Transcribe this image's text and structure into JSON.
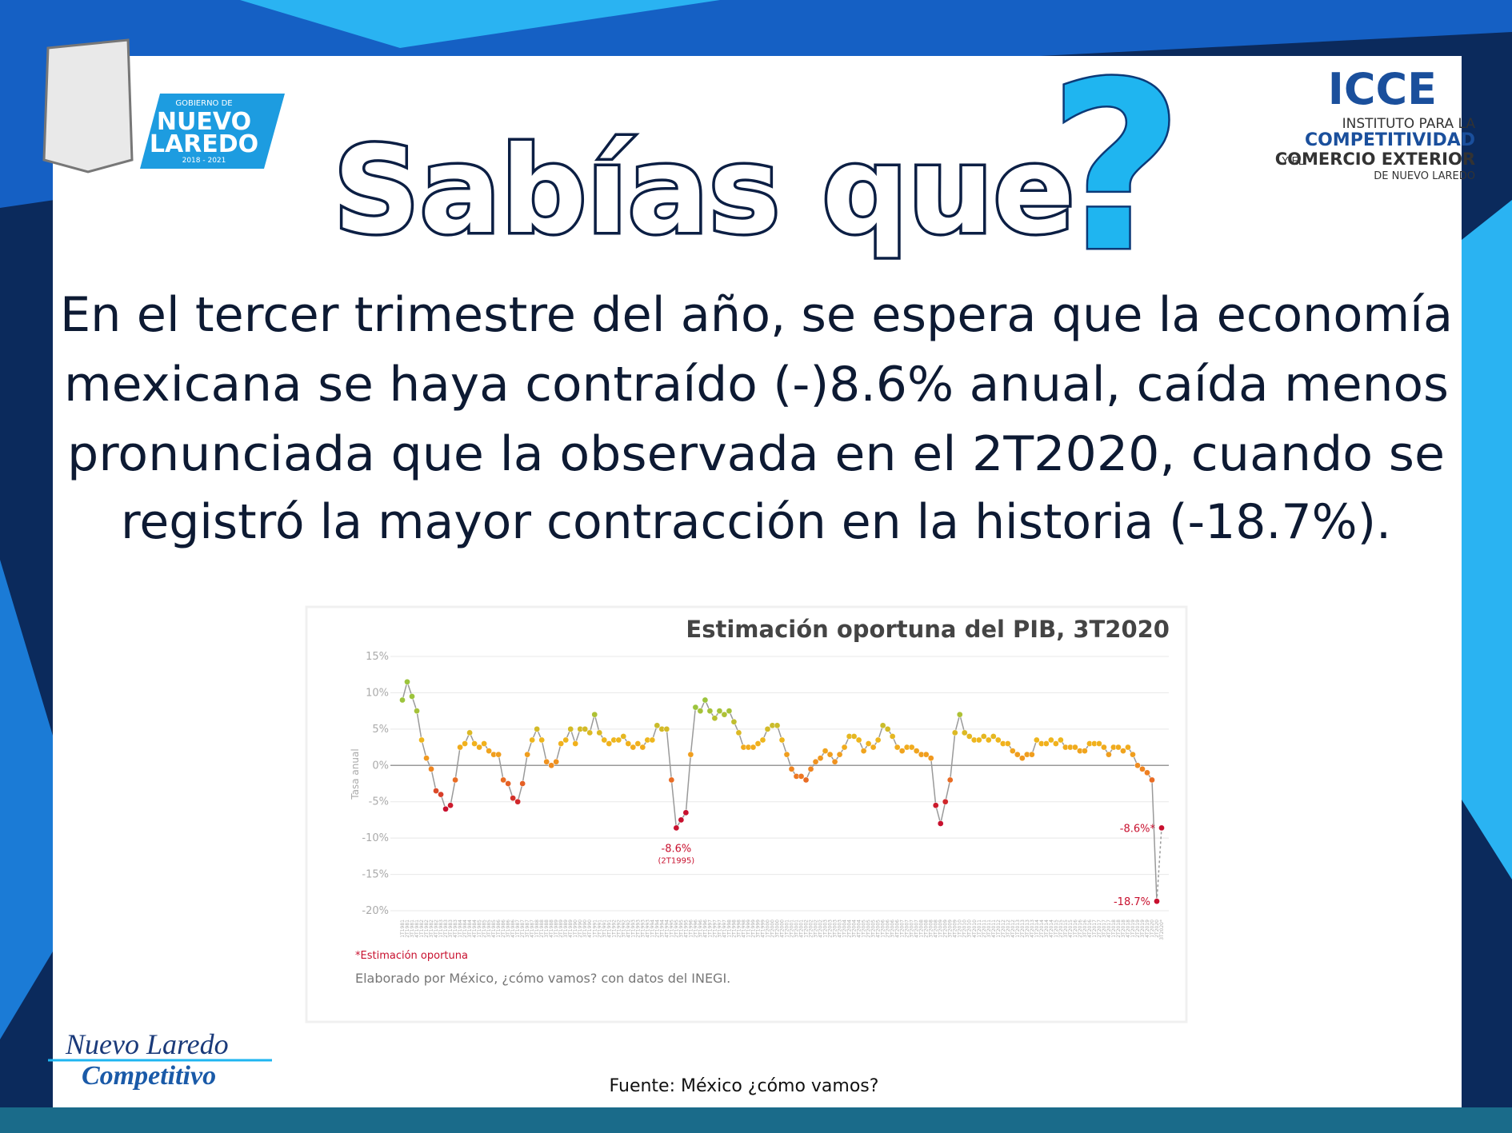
{
  "header": {
    "title": "Sabías que",
    "mark": "?"
  },
  "logo_left": {
    "top": "GOBIERNO DE",
    "line1": "NUEVO",
    "line2": "LAREDO",
    "years": "2018 - 2021"
  },
  "logo_right": {
    "acronym": "ICCE",
    "line1": "INSTITUTO PARA LA",
    "line2": "COMPETITIVIDAD",
    "line3_prefix": "Y EL",
    "line3": "COMERCIO EXTERIOR",
    "line4": "DE NUEVO LAREDO"
  },
  "body": {
    "lines": [
      "En el tercer trimestre del año, se espera que la economía",
      "mexicana se haya contraído (-)8.6% anual, caída menos",
      "pronunciada que la observada en el 2T2020, cuando se",
      "registró la mayor contracción en la historia (-18.7%)."
    ]
  },
  "chart_data": {
    "type": "line",
    "title": "Estimación oportuna del PIB, 3T2020",
    "y_label": "Tasa anual",
    "categories": [
      "1T1981",
      "2T1981",
      "3T1981",
      "4T1981",
      "1T1982",
      "2T1982",
      "3T1982",
      "4T1982",
      "1T1983",
      "2T1983",
      "3T1983",
      "4T1983",
      "1T1984",
      "2T1984",
      "3T1984",
      "4T1984",
      "1T1985",
      "2T1985",
      "3T1985",
      "4T1985",
      "1T1986",
      "2T1986",
      "3T1986",
      "4T1986",
      "1T1987",
      "2T1987",
      "3T1987",
      "4T1987",
      "1T1988",
      "2T1988",
      "3T1988",
      "4T1988",
      "1T1989",
      "2T1989",
      "3T1989",
      "4T1989",
      "1T1990",
      "2T1990",
      "3T1990",
      "4T1990",
      "1T1991",
      "2T1991",
      "3T1991",
      "4T1991",
      "1T1992",
      "2T1992",
      "3T1992",
      "4T1992",
      "1T1993",
      "2T1993",
      "3T1993",
      "4T1993",
      "1T1994",
      "2T1994",
      "3T1994",
      "4T1994",
      "1T1995",
      "2T1995",
      "3T1995",
      "4T1995",
      "1T1996",
      "2T1996",
      "3T1996",
      "4T1996",
      "1T1997",
      "2T1997",
      "3T1997",
      "4T1997",
      "1T1998",
      "2T1998",
      "3T1998",
      "4T1998",
      "1T1999",
      "2T1999",
      "3T1999",
      "4T1999",
      "1T2000",
      "2T2000",
      "3T2000",
      "4T2000",
      "1T2001",
      "2T2001",
      "3T2001",
      "4T2001",
      "1T2002",
      "2T2002",
      "3T2002",
      "4T2002",
      "1T2003",
      "2T2003",
      "3T2003",
      "4T2003",
      "1T2004",
      "2T2004",
      "3T2004",
      "4T2004",
      "1T2005",
      "2T2005",
      "3T2005",
      "4T2005",
      "1T2006",
      "2T2006",
      "3T2006",
      "4T2006",
      "1T2007",
      "2T2007",
      "3T2007",
      "4T2007",
      "1T2008",
      "2T2008",
      "3T2008",
      "4T2008",
      "1T2009",
      "2T2009",
      "3T2009",
      "4T2009",
      "1T2010",
      "2T2010",
      "3T2010",
      "4T2010",
      "1T2011",
      "2T2011",
      "3T2011",
      "4T2011",
      "1T2012",
      "2T2012",
      "3T2012",
      "4T2012",
      "1T2013",
      "2T2013",
      "3T2013",
      "4T2013",
      "1T2014",
      "2T2014",
      "3T2014",
      "4T2014",
      "1T2015",
      "2T2015",
      "3T2015",
      "4T2015",
      "1T2016",
      "2T2016",
      "3T2016",
      "4T2016",
      "1T2017",
      "2T2017",
      "3T2017",
      "4T2017",
      "1T2018",
      "2T2018",
      "3T2018",
      "4T2018",
      "1T2019",
      "2T2019",
      "3T2019",
      "4T2019",
      "1T2020",
      "2T2020",
      "3T2020*"
    ],
    "values": [
      9,
      11.5,
      9.5,
      7.5,
      3.5,
      1,
      -0.5,
      -3.5,
      -4,
      -6,
      -5.5,
      -2,
      2.5,
      3,
      4.5,
      3,
      2.5,
      3,
      2,
      1.5,
      1.5,
      -2,
      -2.5,
      -4.5,
      -5,
      -2.5,
      1.5,
      3.5,
      5,
      3.5,
      0.5,
      0,
      0.5,
      3,
      3.5,
      5,
      3,
      5,
      5,
      4.5,
      7,
      4.5,
      3.5,
      3,
      3.5,
      3.5,
      4,
      3,
      2.5,
      3,
      2.5,
      3.5,
      3.5,
      5.5,
      5,
      5,
      -2,
      -8.6,
      -7.5,
      -6.5,
      1.5,
      8,
      7.5,
      9,
      7.5,
      6.5,
      7.5,
      7,
      7.5,
      6,
      4.5,
      2.5,
      2.5,
      2.5,
      3,
      3.5,
      5,
      5.5,
      5.5,
      3.5,
      1.5,
      -0.5,
      -1.5,
      -1.5,
      -2,
      -0.5,
      0.5,
      1,
      2,
      1.5,
      0.5,
      1.5,
      2.5,
      4,
      4,
      3.5,
      2,
      3,
      2.5,
      3.5,
      5.5,
      5,
      4,
      2.5,
      2,
      2.5,
      2.5,
      2,
      1.5,
      1.5,
      1,
      -5.5,
      -8,
      -5,
      -2,
      4.5,
      7,
      4.5,
      4,
      3.5,
      3.5,
      4,
      3.5,
      4,
      3.5,
      3,
      3,
      2,
      1.5,
      1,
      1.5,
      1.5,
      3.5,
      3,
      3,
      3.5,
      3,
      3.5,
      2.5,
      2.5,
      2.5,
      2,
      2,
      3,
      3,
      3,
      2.5,
      1.5,
      2.5,
      2.5,
      2,
      2.5,
      1.5,
      0,
      -0.5,
      -1,
      -2,
      -18.7,
      -8.6
    ],
    "line_color": "#9a9a9a",
    "point_colors": [
      "#c8102e",
      "#ee7b22",
      "#f1b51c",
      "#9cc43c"
    ],
    "last_segment_dashed": true,
    "ylim": [
      -20,
      15
    ],
    "yticks": [
      {
        "value": 15,
        "label": "15%"
      },
      {
        "value": 10,
        "label": "10%"
      },
      {
        "value": 5,
        "label": "5%"
      },
      {
        "value": 0,
        "label": "0%"
      },
      {
        "value": -5,
        "label": "-5%"
      },
      {
        "value": -10,
        "label": "-10%"
      },
      {
        "value": -15,
        "label": "-15%"
      },
      {
        "value": -20,
        "label": "-20%"
      }
    ],
    "grid": true,
    "annotations": [
      "-8.6%",
      "(2T1995)",
      "-8.6%*",
      "-18.7%"
    ],
    "notes": [
      "*Estimación oportuna",
      "Elaborado por México, ¿cómo vamos? con datos del INEGI."
    ]
  },
  "footer": {
    "brand_line1": "Nuevo Laredo",
    "brand_line2": "Competitivo",
    "source": "Fuente: México ¿cómo vamos?"
  }
}
